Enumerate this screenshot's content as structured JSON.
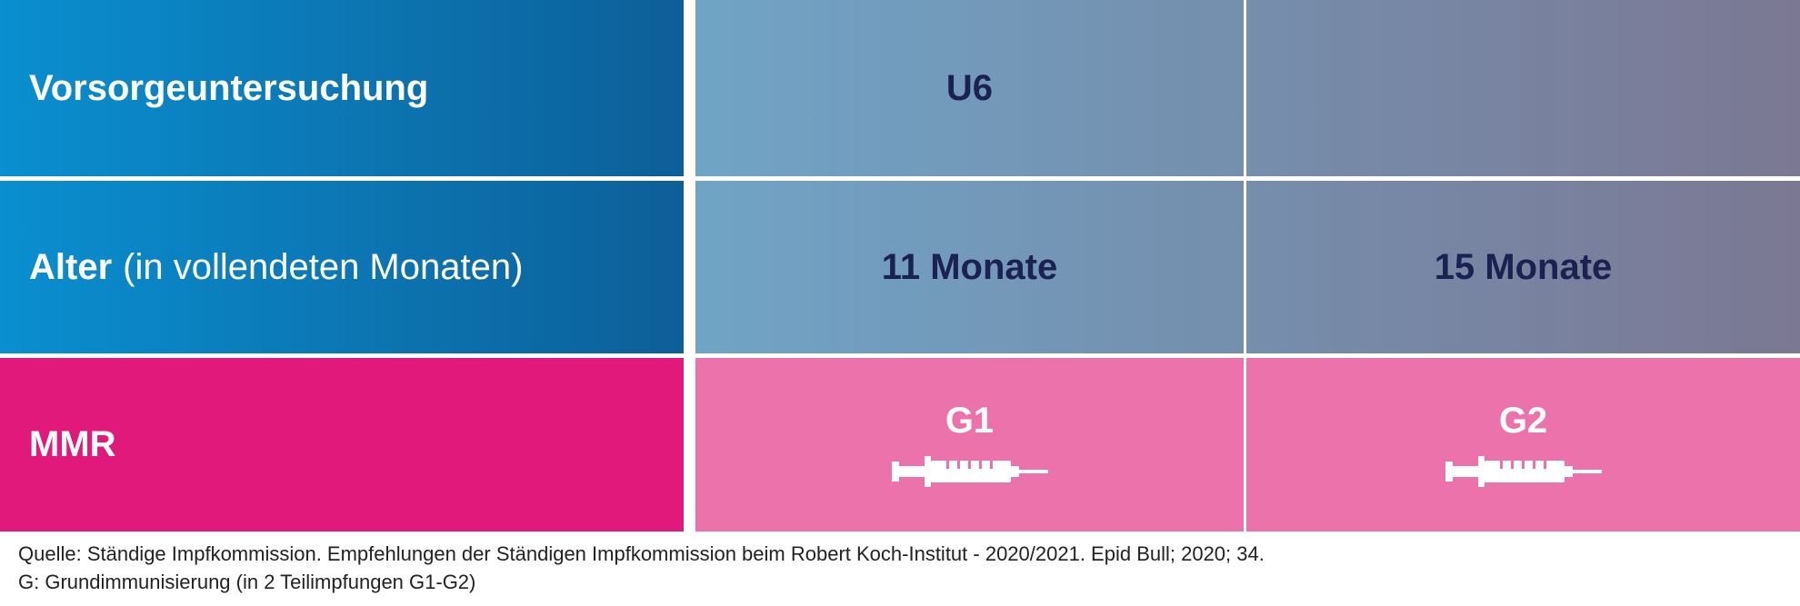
{
  "table": {
    "rows": [
      {
        "label": "Vorsorgeuntersuchung",
        "cells": [
          "U6"
        ]
      },
      {
        "label": "Alter",
        "note": "(in vollendeten Monaten)",
        "cells": [
          "11 Monate",
          "15 Monate"
        ]
      },
      {
        "label": "MMR",
        "cells": [
          "G1",
          "G2"
        ]
      }
    ]
  },
  "footer": {
    "lines": [
      "Quelle: Ständige Impfkommission. Empfehlungen der Ständigen Impfkommission beim Robert Koch-Institut - 2020/2021. Epid Bull; 2020; 34.",
      "G: Grundimmunisierung (in 2 Teilimpfungen G1-G2)"
    ]
  }
}
